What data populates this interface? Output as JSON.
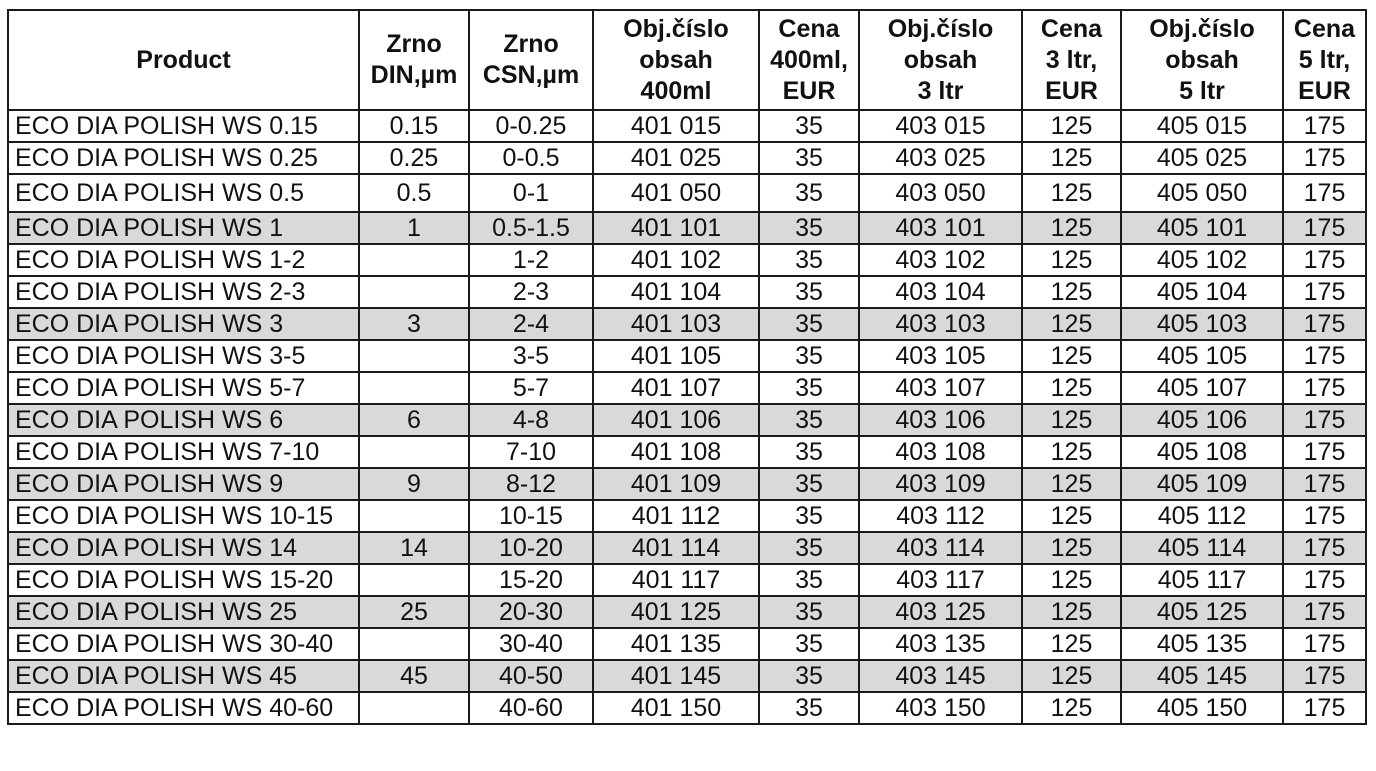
{
  "table": {
    "headers": [
      [
        "Product"
      ],
      [
        "Zrno",
        "DIN,µm"
      ],
      [
        "Zrno",
        "CSN,µm"
      ],
      [
        "Obj.číslo",
        "obsah",
        "400ml"
      ],
      [
        "Cena",
        "400ml,",
        "EUR"
      ],
      [
        "Obj.číslo",
        "obsah",
        "3 ltr"
      ],
      [
        "Cena",
        "3 ltr,",
        "EUR"
      ],
      [
        "Obj.číslo",
        "obsah",
        "5 ltr"
      ],
      [
        "Cena",
        "5 ltr,",
        "EUR"
      ]
    ],
    "shade_color": "#d9d9d9",
    "rows": [
      {
        "shaded": false,
        "cells": [
          "ECO DIA POLISH WS 0.15",
          "0.15",
          "0-0.25",
          "401 015",
          "35",
          "403 015",
          "125",
          "405 015",
          "175"
        ]
      },
      {
        "shaded": false,
        "cells": [
          "ECO DIA POLISH WS 0.25",
          "0.25",
          "0-0.5",
          "401 025",
          "35",
          "403 025",
          "125",
          "405 025",
          "175"
        ]
      },
      {
        "shaded": false,
        "cells": [
          "ECO DIA POLISH WS 0.5",
          "0.5",
          "0-1",
          "401 050",
          "35",
          "403 050",
          "125",
          "405 050",
          "175"
        ]
      },
      {
        "shaded": true,
        "cells": [
          "ECO DIA POLISH WS 1",
          "1",
          "0.5-1.5",
          "401 101",
          "35",
          "403 101",
          "125",
          "405 101",
          "175"
        ]
      },
      {
        "shaded": false,
        "cells": [
          "ECO DIA POLISH WS 1-2",
          "",
          "1-2",
          "401 102",
          "35",
          "403 102",
          "125",
          "405 102",
          "175"
        ]
      },
      {
        "shaded": false,
        "cells": [
          "ECO DIA POLISH WS 2-3",
          "",
          "2-3",
          "401 104",
          "35",
          "403 104",
          "125",
          "405 104",
          "175"
        ]
      },
      {
        "shaded": true,
        "cells": [
          "ECO DIA POLISH WS 3",
          "3",
          "2-4",
          "401 103",
          "35",
          "403 103",
          "125",
          "405 103",
          "175"
        ]
      },
      {
        "shaded": false,
        "cells": [
          "ECO DIA POLISH WS 3-5",
          "",
          "3-5",
          "401 105",
          "35",
          "403 105",
          "125",
          "405 105",
          "175"
        ]
      },
      {
        "shaded": false,
        "cells": [
          "ECO DIA POLISH WS 5-7",
          "",
          "5-7",
          "401 107",
          "35",
          "403 107",
          "125",
          "405 107",
          "175"
        ]
      },
      {
        "shaded": true,
        "cells": [
          "ECO DIA POLISH WS 6",
          "6",
          "4-8",
          "401 106",
          "35",
          "403 106",
          "125",
          "405 106",
          "175"
        ]
      },
      {
        "shaded": false,
        "cells": [
          "ECO DIA POLISH WS 7-10",
          "",
          "7-10",
          "401 108",
          "35",
          "403 108",
          "125",
          "405 108",
          "175"
        ]
      },
      {
        "shaded": true,
        "cells": [
          "ECO DIA POLISH WS 9",
          "9",
          "8-12",
          "401 109",
          "35",
          "403 109",
          "125",
          "405 109",
          "175"
        ]
      },
      {
        "shaded": false,
        "cells": [
          "ECO DIA POLISH WS 10-15",
          "",
          "10-15",
          "401 112",
          "35",
          "403 112",
          "125",
          "405 112",
          "175"
        ]
      },
      {
        "shaded": true,
        "cells": [
          "ECO DIA POLISH WS 14",
          "14",
          "10-20",
          "401 114",
          "35",
          "403 114",
          "125",
          "405 114",
          "175"
        ]
      },
      {
        "shaded": false,
        "cells": [
          "ECO DIA POLISH WS 15-20",
          "",
          "15-20",
          "401 117",
          "35",
          "403 117",
          "125",
          "405 117",
          "175"
        ]
      },
      {
        "shaded": true,
        "cells": [
          "ECO DIA POLISH WS 25",
          "25",
          "20-30",
          "401 125",
          "35",
          "403 125",
          "125",
          "405 125",
          "175"
        ]
      },
      {
        "shaded": false,
        "cells": [
          "ECO DIA POLISH WS 30-40",
          "",
          "30-40",
          "401 135",
          "35",
          "403 135",
          "125",
          "405 135",
          "175"
        ]
      },
      {
        "shaded": true,
        "cells": [
          "ECO DIA POLISH WS 45",
          "45",
          "40-50",
          "401 145",
          "35",
          "403 145",
          "125",
          "405 145",
          "175"
        ]
      },
      {
        "shaded": false,
        "cells": [
          "ECO DIA POLISH WS 40-60",
          "",
          "40-60",
          "401 150",
          "35",
          "403 150",
          "125",
          "405 150",
          "175"
        ]
      }
    ]
  }
}
